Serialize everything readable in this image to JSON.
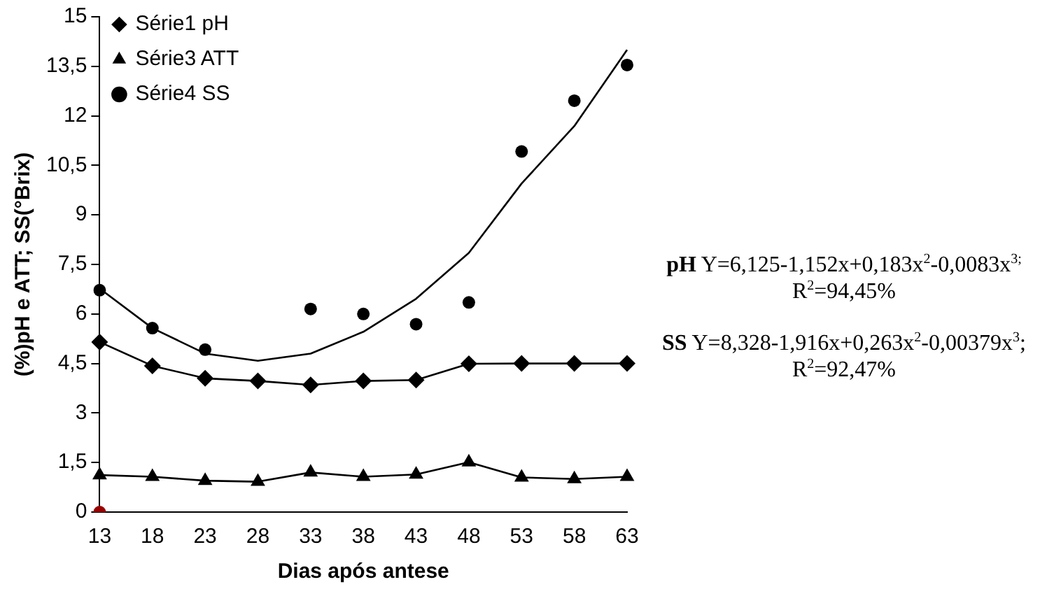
{
  "chart_data": {
    "type": "line",
    "xlabel": "Dias após antese",
    "ylabel": "(%)pH e ATT; SS(°Brix)",
    "categories": [
      "13",
      "18",
      "23",
      "28",
      "33",
      "38",
      "43",
      "48",
      "53",
      "58",
      "63"
    ],
    "ylim": [
      0,
      15
    ],
    "yticks": [
      0,
      {
        "value": 1.5,
        "label": "1,5"
      },
      3,
      {
        "value": 4.5,
        "label": "4,5"
      },
      6,
      {
        "value": 7.5,
        "label": "7,5"
      },
      9,
      {
        "value": 10.5,
        "label": "10,5"
      },
      12,
      {
        "value": 13.5,
        "label": "13,5"
      },
      15
    ],
    "grid": false,
    "legend": "top left",
    "series": [
      {
        "name": "Série1 pH",
        "marker": "diamond",
        "color": "#000000",
        "values": [
          5.15,
          4.43,
          4.05,
          3.97,
          3.85,
          3.97,
          4.0,
          4.49,
          4.5,
          4.5,
          4.5
        ]
      },
      {
        "name": "Série3 ATT",
        "marker": "triangle",
        "color": "#000000",
        "values": [
          1.12,
          1.07,
          0.95,
          0.92,
          1.2,
          1.07,
          1.14,
          1.51,
          1.05,
          1.0,
          1.07
        ]
      },
      {
        "name": "Série4 SS",
        "type": "scatter",
        "marker": "circle",
        "color": "#000000",
        "values": [
          6.72,
          5.57,
          4.92,
          null,
          6.15,
          6.0,
          5.69,
          6.35,
          10.92,
          12.46,
          13.54
        ]
      },
      {
        "marker": "none",
        "color": "#000000",
        "values": [
          6.77,
          5.57,
          4.8,
          4.58,
          4.8,
          5.46,
          6.46,
          7.85,
          9.95,
          11.69,
          14.0
        ]
      },
      {
        "type": "scatter",
        "marker": "circle",
        "color": "#990000",
        "values": [
          0,
          null,
          null,
          null,
          null,
          null,
          null,
          null,
          null,
          null,
          null
        ]
      }
    ],
    "annotations": [
      "pH Y=6,125-1,152x+0,183x$^{2}$-0,0083x$^{3;}$ R$^{2}$=94,45%",
      "SS Y=8,328-1,916x+0,263x$^{2}$-0,00379x$^{3}$; R$^{2}$=92,47%"
    ]
  }
}
